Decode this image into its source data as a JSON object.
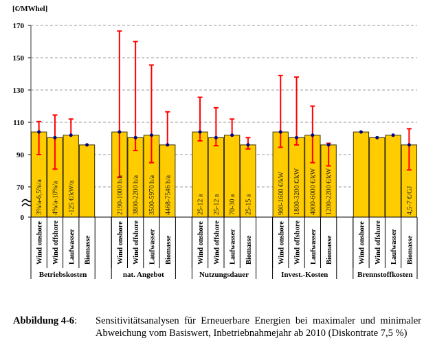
{
  "chart_data": {
    "type": "bar",
    "subtype": "grouped bar with error bars (min/max deviation)",
    "ylabel": "[€/MWhel]",
    "yticks": [
      0,
      70,
      90,
      110,
      130,
      150,
      170
    ],
    "ylim": [
      0,
      170
    ],
    "axis_break": "between 0 and 70",
    "grid": true,
    "bar_color": "#FFCC00",
    "error_color": "#FF0000",
    "marker_color": "#000080",
    "categories": [
      "Wind onshore",
      "Wind offshore",
      "Laufwasser",
      "Biomasse"
    ],
    "groups": [
      {
        "name": "Betriebskosten",
        "bars": [
          {
            "category": "Wind onshore",
            "value": 104,
            "err_low": 90,
            "err_high": 110.5,
            "label": "3%/a-6,5%/a"
          },
          {
            "category": "Wind offshore",
            "value": 100.5,
            "err_low": 81,
            "err_high": 114.5,
            "label": "4%/a-10%/a"
          },
          {
            "category": "Laufwasser",
            "value": 102,
            "err_low": 102,
            "err_high": 112,
            "label": "-125 €/kW/a"
          },
          {
            "category": "Biomasse",
            "value": 96,
            "err_low": 96,
            "err_high": 96,
            "label": ""
          }
        ]
      },
      {
        "name": "nat. Angebot",
        "bars": [
          {
            "category": "Wind onshore",
            "value": 104,
            "err_low": 76,
            "err_high": 166.5,
            "label": "2190-1000 h/a"
          },
          {
            "category": "Wind offshore",
            "value": 100.5,
            "err_low": 92.5,
            "err_high": 160,
            "label": "3800-2200 h/a"
          },
          {
            "category": "Laufwasser",
            "value": 102,
            "err_low": 85,
            "err_high": 145.5,
            "label": "3500-5970 h/a"
          },
          {
            "category": "Biomasse",
            "value": 96,
            "err_low": 96,
            "err_high": 116.5,
            "label": "4468-7546 h/a"
          }
        ]
      },
      {
        "name": "Nutzungsdauer",
        "bars": [
          {
            "category": "Wind onshore",
            "value": 104,
            "err_low": 98.5,
            "err_high": 125.5,
            "label": "25-12 a"
          },
          {
            "category": "Wind offshore",
            "value": 100.5,
            "err_low": 95.5,
            "err_high": 119,
            "label": "25-12 a"
          },
          {
            "category": "Laufwasser",
            "value": 102,
            "err_low": 102,
            "err_high": 112,
            "label": "70-30 a"
          },
          {
            "category": "Biomasse",
            "value": 96,
            "err_low": 93.5,
            "err_high": 100.5,
            "label": "25-15 a"
          }
        ]
      },
      {
        "name": "Invest.-Kosten",
        "bars": [
          {
            "category": "Wind onshore",
            "value": 104,
            "err_low": 94.5,
            "err_high": 139,
            "label": "900-1600 €/kW"
          },
          {
            "category": "Wind offshore",
            "value": 100.5,
            "err_low": 96,
            "err_high": 138,
            "label": "1800-3200 €/kW"
          },
          {
            "category": "Laufwasser",
            "value": 102,
            "err_low": 85,
            "err_high": 120,
            "label": "4000-6000 €/kW"
          },
          {
            "category": "Biomasse",
            "value": 96,
            "err_low": 83,
            "err_high": 97,
            "label": "1200-2200 €/kW"
          }
        ]
      },
      {
        "name": "Brennstoffkosten",
        "bars": [
          {
            "category": "Wind onshore",
            "value": 104,
            "err_low": 104,
            "err_high": 104,
            "label": ""
          },
          {
            "category": "Wind offshore",
            "value": 100.5,
            "err_low": 100.5,
            "err_high": 100.5,
            "label": ""
          },
          {
            "category": "Laufwasser",
            "value": 102,
            "err_low": 102,
            "err_high": 102,
            "label": ""
          },
          {
            "category": "Biomasse",
            "value": 96,
            "err_low": 80.5,
            "err_high": 106,
            "label": "4,5-7 €/GJ"
          }
        ]
      }
    ]
  },
  "caption": {
    "label": "Abbildung 4-6",
    "colon": ":",
    "text": "Sensitivitätsanalysen für Erneuerbare Energien bei maximaler und minimaler Abweichung vom Basiswert, Inbetriebnahmejahr ab 2010 (Diskontrate 7,5 %)"
  }
}
